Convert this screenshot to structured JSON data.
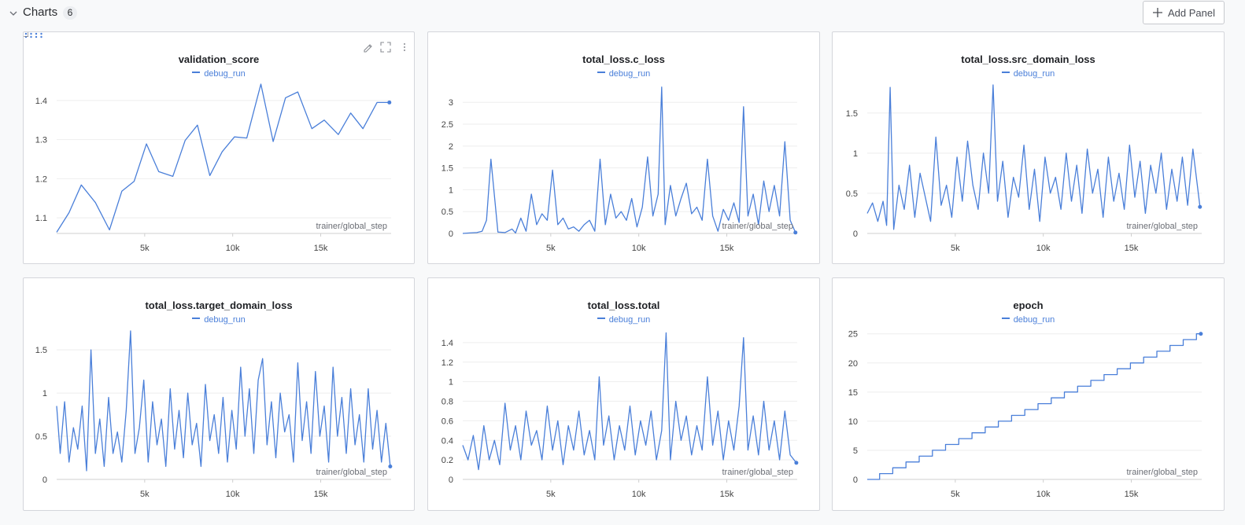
{
  "section": {
    "title": "Charts",
    "count": "6",
    "add_panel_label": "Add Panel"
  },
  "icons": {
    "collapse": "chevron-down-icon",
    "add": "plus-icon",
    "drag": "drag-handle-icon",
    "edit": "pencil-icon",
    "fullscreen": "fullscreen-icon",
    "menu": "more-vertical-icon"
  },
  "colors": {
    "line": "#4a7fd9",
    "grid": "#eeeeee",
    "axis": "#cfcfcf",
    "text": "#444444",
    "xlabel": "#6b6e75"
  },
  "chart_data": [
    {
      "type": "line",
      "title": "validation_score",
      "legend": [
        "debug_run"
      ],
      "xlabel": "trainer/global_step",
      "xlim": [
        0,
        19000
      ],
      "ylim": [
        1.06,
        1.44
      ],
      "xticks": [
        5000,
        10000,
        15000
      ],
      "xtick_labels": [
        "5k",
        "10k",
        "15k"
      ],
      "yticks": [
        1.1,
        1.2,
        1.3,
        1.4
      ],
      "ytick_labels": [
        "1.1",
        "1.2",
        "1.3",
        "1.4"
      ],
      "series": [
        {
          "name": "debug_run",
          "x": [
            0,
            700,
            1400,
            2200,
            3000,
            3700,
            4400,
            5100,
            5800,
            6600,
            7300,
            8000,
            8700,
            9400,
            10100,
            10800,
            11600,
            12300,
            13000,
            13700,
            14500,
            15200,
            16000,
            16700,
            17400,
            18200,
            18900
          ],
          "y": [
            1.063,
            1.113,
            1.184,
            1.139,
            1.069,
            1.168,
            1.193,
            1.289,
            1.218,
            1.206,
            1.298,
            1.337,
            1.208,
            1.269,
            1.307,
            1.304,
            1.442,
            1.295,
            1.407,
            1.422,
            1.328,
            1.35,
            1.313,
            1.368,
            1.328,
            1.395,
            1.395
          ]
        }
      ]
    },
    {
      "type": "line",
      "title": "total_loss.c_loss",
      "legend": [
        "debug_run"
      ],
      "xlabel": "trainer/global_step",
      "xlim": [
        0,
        19000
      ],
      "ylim": [
        0,
        3.4
      ],
      "xticks": [
        5000,
        10000,
        15000
      ],
      "xtick_labels": [
        "5k",
        "10k",
        "15k"
      ],
      "yticks": [
        0,
        0.5,
        1,
        1.5,
        2,
        2.5,
        3
      ],
      "ytick_labels": [
        "0",
        "0.5",
        "1",
        "1.5",
        "2",
        "2.5",
        "3"
      ],
      "series": [
        {
          "name": "debug_run",
          "x": [
            0,
            400,
            800,
            1100,
            1350,
            1600,
            2000,
            2400,
            2800,
            3000,
            3300,
            3600,
            3900,
            4200,
            4500,
            4800,
            5100,
            5400,
            5700,
            6000,
            6300,
            6600,
            6900,
            7200,
            7500,
            7800,
            8100,
            8400,
            8700,
            9000,
            9300,
            9600,
            9900,
            10200,
            10500,
            10800,
            11100,
            11300,
            11500,
            11800,
            12100,
            12400,
            12700,
            13000,
            13300,
            13600,
            13900,
            14200,
            14500,
            14800,
            15100,
            15400,
            15700,
            15950,
            16200,
            16500,
            16800,
            17100,
            17400,
            17700,
            18000,
            18300,
            18600,
            18900
          ],
          "y": [
            0,
            0.01,
            0.02,
            0.05,
            0.3,
            1.7,
            0.03,
            0.02,
            0.1,
            0.01,
            0.35,
            0.05,
            0.9,
            0.2,
            0.45,
            0.3,
            1.45,
            0.2,
            0.35,
            0.1,
            0.15,
            0.05,
            0.2,
            0.3,
            0.05,
            1.7,
            0.2,
            0.9,
            0.35,
            0.5,
            0.3,
            0.8,
            0.15,
            0.6,
            1.75,
            0.4,
            0.9,
            3.35,
            0.2,
            1.1,
            0.4,
            0.8,
            1.15,
            0.45,
            0.6,
            0.3,
            1.7,
            0.4,
            0.05,
            0.55,
            0.3,
            0.7,
            0.25,
            2.9,
            0.4,
            0.9,
            0.2,
            1.2,
            0.5,
            1.1,
            0.4,
            2.1,
            0.3,
            0.02
          ]
        }
      ]
    },
    {
      "type": "line",
      "title": "total_loss.src_domain_loss",
      "legend": [
        "debug_run"
      ],
      "xlabel": "trainer/global_step",
      "xlim": [
        0,
        19000
      ],
      "ylim": [
        0,
        1.85
      ],
      "xticks": [
        5000,
        10000,
        15000
      ],
      "xtick_labels": [
        "5k",
        "10k",
        "15k"
      ],
      "yticks": [
        0,
        0.5,
        1,
        1.5
      ],
      "ytick_labels": [
        "0",
        "0.5",
        "1",
        "1.5"
      ],
      "series": [
        {
          "name": "debug_run",
          "x": [
            0,
            300,
            600,
            900,
            1100,
            1300,
            1500,
            1800,
            2100,
            2400,
            2700,
            3000,
            3300,
            3600,
            3900,
            4200,
            4500,
            4800,
            5100,
            5400,
            5700,
            6000,
            6300,
            6600,
            6900,
            7150,
            7400,
            7700,
            8000,
            8300,
            8600,
            8900,
            9200,
            9500,
            9800,
            10100,
            10400,
            10700,
            11000,
            11300,
            11600,
            11900,
            12200,
            12500,
            12800,
            13100,
            13400,
            13700,
            14000,
            14300,
            14600,
            14900,
            15200,
            15500,
            15800,
            16100,
            16400,
            16700,
            17000,
            17300,
            17600,
            17900,
            18200,
            18500,
            18900
          ],
          "y": [
            0.25,
            0.38,
            0.15,
            0.4,
            0.1,
            1.82,
            0.05,
            0.6,
            0.3,
            0.85,
            0.2,
            0.75,
            0.45,
            0.15,
            1.2,
            0.35,
            0.6,
            0.2,
            0.95,
            0.4,
            1.15,
            0.6,
            0.3,
            1.0,
            0.5,
            1.85,
            0.4,
            0.9,
            0.2,
            0.7,
            0.45,
            1.1,
            0.3,
            0.8,
            0.15,
            0.95,
            0.5,
            0.7,
            0.3,
            1.0,
            0.4,
            0.85,
            0.25,
            1.05,
            0.5,
            0.8,
            0.2,
            0.95,
            0.4,
            0.75,
            0.3,
            1.1,
            0.45,
            0.9,
            0.25,
            0.85,
            0.5,
            1.0,
            0.3,
            0.8,
            0.4,
            0.95,
            0.35,
            1.05,
            0.33
          ]
        }
      ]
    },
    {
      "type": "line",
      "title": "total_loss.target_domain_loss",
      "legend": [
        "debug_run"
      ],
      "xlabel": "trainer/global_step",
      "xlim": [
        0,
        19000
      ],
      "ylim": [
        0,
        1.72
      ],
      "xticks": [
        5000,
        10000,
        15000
      ],
      "xtick_labels": [
        "5k",
        "10k",
        "15k"
      ],
      "yticks": [
        0,
        0.5,
        1,
        1.5
      ],
      "ytick_labels": [
        "0",
        "0.5",
        "1",
        "1.5"
      ],
      "series": [
        {
          "name": "debug_run",
          "x": [
            0,
            200,
            450,
            700,
            950,
            1200,
            1450,
            1700,
            1950,
            2200,
            2450,
            2700,
            2950,
            3200,
            3450,
            3700,
            3950,
            4200,
            4450,
            4700,
            4950,
            5200,
            5450,
            5700,
            5950,
            6200,
            6450,
            6700,
            6950,
            7200,
            7450,
            7700,
            7950,
            8200,
            8450,
            8700,
            8950,
            9200,
            9450,
            9700,
            9950,
            10200,
            10450,
            10700,
            10950,
            11200,
            11450,
            11700,
            11950,
            12200,
            12450,
            12700,
            12950,
            13200,
            13450,
            13700,
            13950,
            14200,
            14450,
            14700,
            14950,
            15200,
            15450,
            15700,
            15950,
            16200,
            16450,
            16700,
            16950,
            17200,
            17450,
            17700,
            17950,
            18200,
            18450,
            18700,
            18950
          ],
          "y": [
            0.85,
            0.3,
            0.9,
            0.2,
            0.6,
            0.35,
            0.85,
            0.1,
            1.5,
            0.3,
            0.7,
            0.15,
            0.95,
            0.3,
            0.55,
            0.2,
            0.8,
            1.72,
            0.3,
            0.6,
            1.15,
            0.2,
            0.9,
            0.4,
            0.7,
            0.15,
            1.05,
            0.35,
            0.8,
            0.25,
            1.0,
            0.4,
            0.65,
            0.15,
            1.1,
            0.45,
            0.75,
            0.3,
            0.95,
            0.2,
            0.8,
            0.35,
            1.3,
            0.5,
            1.05,
            0.3,
            1.15,
            1.4,
            0.4,
            0.9,
            0.25,
            1.0,
            0.55,
            0.75,
            0.2,
            1.35,
            0.45,
            0.9,
            0.3,
            1.25,
            0.5,
            0.85,
            0.2,
            1.3,
            0.5,
            0.95,
            0.3,
            1.05,
            0.4,
            0.75,
            0.2,
            1.05,
            0.35,
            0.8,
            0.2,
            0.65,
            0.15
          ]
        }
      ]
    },
    {
      "type": "line",
      "title": "total_loss.total",
      "legend": [
        "debug_run"
      ],
      "xlabel": "trainer/global_step",
      "xlim": [
        0,
        19000
      ],
      "ylim": [
        0,
        1.52
      ],
      "xticks": [
        5000,
        10000,
        15000
      ],
      "xtick_labels": [
        "5k",
        "10k",
        "15k"
      ],
      "yticks": [
        0,
        0.2,
        0.4,
        0.6,
        0.8,
        1,
        1.2,
        1.4
      ],
      "ytick_labels": [
        "0",
        "0.2",
        "0.4",
        "0.6",
        "0.8",
        "1",
        "1.2",
        "1.4"
      ],
      "series": [
        {
          "name": "debug_run",
          "x": [
            0,
            300,
            600,
            900,
            1200,
            1500,
            1800,
            2100,
            2400,
            2700,
            3000,
            3300,
            3600,
            3900,
            4200,
            4500,
            4800,
            5100,
            5400,
            5700,
            6000,
            6300,
            6600,
            6900,
            7200,
            7500,
            7750,
            8000,
            8300,
            8600,
            8900,
            9200,
            9500,
            9800,
            10100,
            10400,
            10700,
            11000,
            11300,
            11550,
            11800,
            12100,
            12400,
            12700,
            13000,
            13300,
            13600,
            13900,
            14200,
            14500,
            14800,
            15100,
            15400,
            15700,
            15950,
            16200,
            16500,
            16800,
            17100,
            17400,
            17700,
            18000,
            18300,
            18600,
            18950
          ],
          "y": [
            0.35,
            0.2,
            0.45,
            0.1,
            0.55,
            0.2,
            0.4,
            0.15,
            0.78,
            0.3,
            0.55,
            0.2,
            0.7,
            0.35,
            0.5,
            0.2,
            0.75,
            0.3,
            0.6,
            0.15,
            0.55,
            0.3,
            0.7,
            0.25,
            0.5,
            0.2,
            1.05,
            0.35,
            0.65,
            0.2,
            0.55,
            0.3,
            0.75,
            0.25,
            0.6,
            0.35,
            0.7,
            0.2,
            0.5,
            1.5,
            0.2,
            0.8,
            0.4,
            0.65,
            0.25,
            0.55,
            0.3,
            1.05,
            0.35,
            0.7,
            0.2,
            0.6,
            0.3,
            0.75,
            1.45,
            0.3,
            0.65,
            0.25,
            0.8,
            0.3,
            0.6,
            0.2,
            0.7,
            0.25,
            0.17
          ]
        }
      ]
    },
    {
      "type": "line",
      "title": "epoch",
      "legend": [
        "debug_run"
      ],
      "xlabel": "trainer/global_step",
      "xlim": [
        0,
        19000
      ],
      "ylim": [
        0,
        25.5
      ],
      "xticks": [
        5000,
        10000,
        15000
      ],
      "xtick_labels": [
        "5k",
        "10k",
        "15k"
      ],
      "yticks": [
        0,
        5,
        10,
        15,
        20,
        25
      ],
      "ytick_labels": [
        "0",
        "5",
        "10",
        "15",
        "20",
        "25"
      ],
      "series": [
        {
          "name": "debug_run",
          "step": true,
          "x": [
            0,
            700,
            1450,
            2200,
            2950,
            3700,
            4450,
            5200,
            5950,
            6700,
            7450,
            8200,
            8950,
            9700,
            10450,
            11200,
            11950,
            12700,
            13450,
            14200,
            14950,
            15700,
            16450,
            17200,
            17950,
            18700,
            18950
          ],
          "y": [
            0,
            1,
            2,
            3,
            4,
            5,
            6,
            7,
            8,
            9,
            10,
            11,
            12,
            13,
            14,
            15,
            16,
            17,
            18,
            19,
            20,
            21,
            22,
            23,
            24,
            25,
            25
          ]
        }
      ]
    }
  ]
}
